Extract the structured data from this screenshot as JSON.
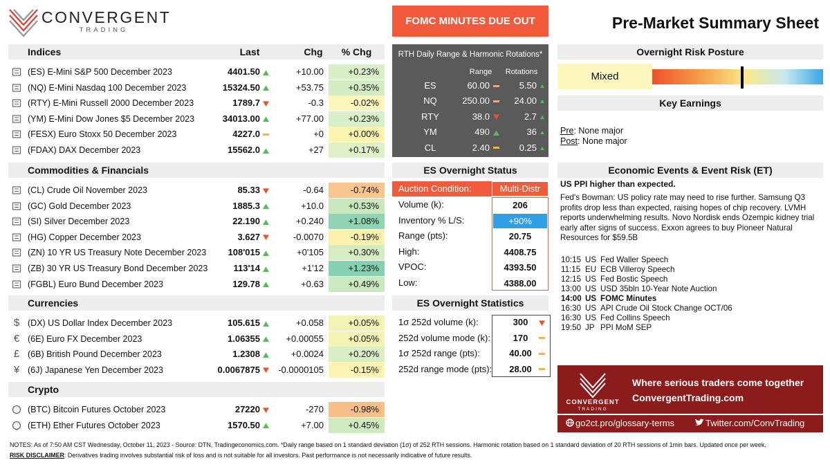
{
  "header": {
    "brand": "CONVERGENT",
    "brand_sub": "TRADING",
    "banner": "FOMC MINUTES DUE OUT",
    "title": "Pre-Market Summary Sheet"
  },
  "markets": {
    "columns": [
      "Last",
      "Chg",
      "% Chg"
    ],
    "sections": [
      {
        "title": "Indices",
        "rows": [
          {
            "name": "(ES) E-Mini S&P 500 December 2023",
            "last": "4401.50",
            "dir": "up",
            "chg": "+10.00",
            "pct": "+0.23%",
            "pct_color": "#d9efc8"
          },
          {
            "name": "(NQ) E-Mini Nasdaq 100 December 2023",
            "last": "15324.50",
            "dir": "up",
            "chg": "+53.75",
            "pct": "+0.35%",
            "pct_color": "#d4ecc2"
          },
          {
            "name": "(RTY) E-Mini Russell 2000 December 2023",
            "last": "1789.7",
            "dir": "down",
            "chg": "-0.3",
            "pct": "-0.02%",
            "pct_color": "#fcf5bc"
          },
          {
            "name": "(YM) E-Mini Dow Jones $5 December 2023",
            "last": "34013.00",
            "dir": "up",
            "chg": "+77.00",
            "pct": "+0.23%",
            "pct_color": "#d9efc8"
          },
          {
            "name": "(FESX) Euro Stoxx 50 December 2023",
            "last": "4227.0",
            "dir": "flat",
            "chg": "+0",
            "pct": "+0.00%",
            "pct_color": "#fbf3b0"
          },
          {
            "name": "(FDAX) DAX December 2023",
            "last": "15562.0",
            "dir": "up",
            "chg": "+27",
            "pct": "+0.17%",
            "pct_color": "#e0f1c8"
          }
        ]
      },
      {
        "title": "Commodities & Financials",
        "rows": [
          {
            "name": "(CL) Crude Oil November 2023",
            "last": "85.33",
            "dir": "down",
            "chg": "-0.64",
            "pct": "-0.74%",
            "pct_color": "#f9c58f"
          },
          {
            "name": "(GC) Gold December 2023",
            "last": "1885.3",
            "dir": "up",
            "chg": "+10.0",
            "pct": "+0.53%",
            "pct_color": "#c9e8bd"
          },
          {
            "name": "(SI) Silver December 2023",
            "last": "22.190",
            "dir": "up",
            "chg": "+0.240",
            "pct": "+1.08%",
            "pct_color": "#8fd4b4"
          },
          {
            "name": "(HG) Copper December 2023",
            "last": "3.627",
            "dir": "down",
            "chg": "-0.0070",
            "pct": "-0.19%",
            "pct_color": "#fbf0ae"
          },
          {
            "name": "(ZN) 10 YR US Treasury Note December 2023",
            "last": "108'015",
            "dir": "up",
            "chg": "+0'105",
            "pct": "+0.30%",
            "pct_color": "#d6edc4"
          },
          {
            "name": "(ZB) 30 YR US Treasury Bond December 2023",
            "last": "113'14",
            "dir": "up",
            "chg": "+1'12",
            "pct": "+1.23%",
            "pct_color": "#86d1b2"
          },
          {
            "name": "(FGBL) Euro Bund December 2023",
            "last": "129.78",
            "dir": "up",
            "chg": "+0.63",
            "pct": "+0.49%",
            "pct_color": "#cbe9bf"
          }
        ]
      },
      {
        "title": "Currencies",
        "rows": [
          {
            "glyph": "$",
            "name": "(DX) US Dollar Index December 2023",
            "last": "105.615",
            "dir": "up",
            "chg": "+0.058",
            "pct": "+0.05%",
            "pct_color": "#f3f4b4"
          },
          {
            "glyph": "€",
            "name": "(6E) Euro FX December 2023",
            "last": "1.06355",
            "dir": "up",
            "chg": "+0.00055",
            "pct": "+0.05%",
            "pct_color": "#f3f4b4"
          },
          {
            "glyph": "£",
            "name": "(6B) British Pound December 2023",
            "last": "1.2308",
            "dir": "up",
            "chg": "+0.0024",
            "pct": "+0.20%",
            "pct_color": "#dbefc6"
          },
          {
            "glyph": "¥",
            "name": "(6J) Japanese Yen December 2023",
            "last": "0.0067875",
            "dir": "down",
            "chg": "-0.0000105",
            "pct": "-0.15%",
            "pct_color": "#fcf2b2"
          }
        ]
      },
      {
        "title": "Crypto",
        "rows": [
          {
            "name": "(BTC) Bitcoin Futures October 2023",
            "last": "27220",
            "dir": "down",
            "chg": "-270",
            "pct": "-0.98%",
            "pct_color": "#f8bf88"
          },
          {
            "name": "(ETH) Ether Futures October 2023",
            "last": "1570.50",
            "dir": "up",
            "chg": "+7.00",
            "pct": "+0.45%",
            "pct_color": "#cfeac0"
          }
        ]
      }
    ]
  },
  "rth": {
    "title": "RTH Daily Range & Harmonic Rotations*",
    "columns": [
      "Range",
      "Rotations"
    ],
    "rows": [
      {
        "symbol": "ES",
        "range": "60.00",
        "range_dir": "flat",
        "rotations": "5.50",
        "rotations_dir": "up"
      },
      {
        "symbol": "NQ",
        "range": "250.00",
        "range_dir": "flat",
        "rotations": "24.00",
        "rotations_dir": "up"
      },
      {
        "symbol": "RTY",
        "range": "38.0",
        "range_dir": "down",
        "rotations": "2.7",
        "rotations_dir": "up"
      },
      {
        "symbol": "YM",
        "range": "490",
        "range_dir": "up",
        "rotations": "36",
        "rotations_dir": "up"
      },
      {
        "symbol": "CL",
        "range": "2.40",
        "range_dir": "flat",
        "rotations": "0.25",
        "rotations_dir": "up"
      }
    ]
  },
  "overnight_status": {
    "title": "ES Overnight Status",
    "auction": {
      "label": "Auction Condition:",
      "value": "Multi-Distr"
    },
    "rows": [
      {
        "label": "Volume (k):",
        "value": "206"
      },
      {
        "label": "Inventory % L/S:",
        "value": "+90%",
        "highlight": "#2f9fe6"
      },
      {
        "label": "Range (pts):",
        "value": "20.75"
      },
      {
        "label": "High:",
        "value": "4408.75"
      },
      {
        "label": "VPOC:",
        "value": "4393.50"
      },
      {
        "label": "Low:",
        "value": "4388.00"
      }
    ]
  },
  "overnight_stats": {
    "title": "ES Overnight Statistics",
    "rows": [
      {
        "label": "1σ 252d volume (k):",
        "value": "300",
        "dir": "down"
      },
      {
        "label": "252d volume mode (k):",
        "value": "170",
        "dir": "flat"
      },
      {
        "label": "1σ 252d range (pts):",
        "value": "40.00",
        "dir": "flat"
      },
      {
        "label": "252d range mode (pts):",
        "value": "28.00",
        "dir": "flat"
      }
    ]
  },
  "risk_posture": {
    "title": "Overnight Risk Posture",
    "label": "Mixed"
  },
  "key_earnings": {
    "title": "Key Earnings",
    "items": [
      {
        "label": "Pre",
        "text": ": None major"
      },
      {
        "label": "Post",
        "text": ": None major"
      }
    ]
  },
  "events": {
    "title": "Economic Events & Event Risk (ET)",
    "headline": "US PPI higher than expected.",
    "summary": "Fed's Bowman: US policy rate may need to rise further. Samsung Q3 profits drop less than expected, raising hopes of chip recovery. LVMH reports underwhelming results. Novo Nordisk ends Ozempic kidney trial early after signs of success. Exxon agrees to buy Pioneer Natural Resources for $59.5B",
    "items": [
      {
        "time": "10:15",
        "country": "US",
        "event": "Fed Waller Speech"
      },
      {
        "time": "11:15",
        "country": "EU",
        "event": "ECB Villeroy Speech"
      },
      {
        "time": "12:15",
        "country": "US",
        "event": "Fed Bostic Speech"
      },
      {
        "time": "13:00",
        "country": "US",
        "event": "USD 35bln 10-Year Note Auction"
      },
      {
        "time": "14:00",
        "country": "US",
        "event": "FOMC Minutes",
        "bold": true
      },
      {
        "time": "16:30",
        "country": "US",
        "event": "API Crude Oil Stock Change OCT/06"
      },
      {
        "time": "16:30",
        "country": "US",
        "event": "Fed Collins Speech"
      },
      {
        "time": "19:50",
        "country": "JP",
        "event": "PPI MoM SEP"
      }
    ]
  },
  "promo": {
    "brand": "CONVERGENT",
    "brand_sub": "TRADING",
    "tagline": "Where serious traders come together",
    "site": "ConvergentTrading.com",
    "glossary": "go2ct.pro/glossary-terms",
    "twitter": "Twitter.com/ConvTrading"
  },
  "footer": {
    "notes": "NOTES: As of 7:50 AM CST Wednesday, October 11, 2023 - Source: DTN, Tradingeconomics.com. *Daily range based on 1 standard deviation (1σ) of 252 RTH sessions. Harmonic rotation based on 1 standard deviation of 20 RTH sessions of 1min bars. Updated once per week.",
    "disclaimer_label": "RISK DISCLAIMER",
    "disclaimer_text": ": Derivatives trading involves substantial risk of loss and is not suitable for all investors. Past performance is not necessarily indicative of future results."
  }
}
